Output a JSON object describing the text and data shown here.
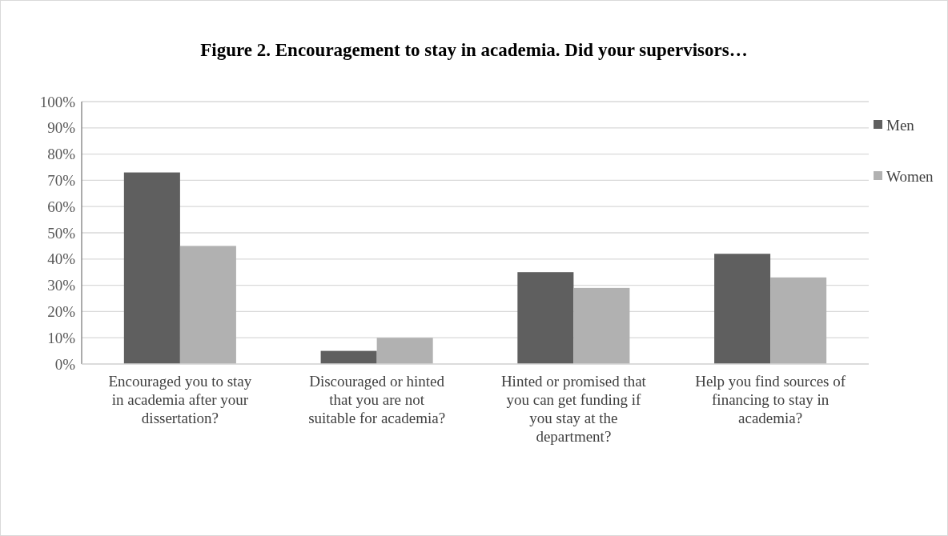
{
  "chart_data": {
    "type": "bar",
    "title": "Figure 2. Encouragement to stay in academia. Did your supervisors…",
    "categories": [
      "Encouraged you to stay in academia after your dissertation?",
      "Discouraged or hinted that you are not suitable for academia?",
      "Hinted or promised that you can get funding if you stay at the department?",
      "Help you find sources of financing to stay in academia?"
    ],
    "series": [
      {
        "name": "Men",
        "color": "#5f5f5f",
        "values": [
          73,
          5,
          35,
          42
        ]
      },
      {
        "name": "Women",
        "color": "#b1b1b1",
        "values": [
          45,
          10,
          29,
          33
        ]
      }
    ],
    "ylim": [
      0,
      100
    ],
    "yticks": [
      {
        "value": 0,
        "label": "0%"
      },
      {
        "value": 10,
        "label": "10%"
      },
      {
        "value": 20,
        "label": "20%"
      },
      {
        "value": 30,
        "label": "30%"
      },
      {
        "value": 40,
        "label": "40%"
      },
      {
        "value": 50,
        "label": "50%"
      },
      {
        "value": 60,
        "label": "60%"
      },
      {
        "value": 70,
        "label": "70%"
      },
      {
        "value": 80,
        "label": "80%"
      },
      {
        "value": 90,
        "label": "90%"
      },
      {
        "value": 100,
        "label": "100%"
      }
    ],
    "grid": "y",
    "legend": "right"
  }
}
